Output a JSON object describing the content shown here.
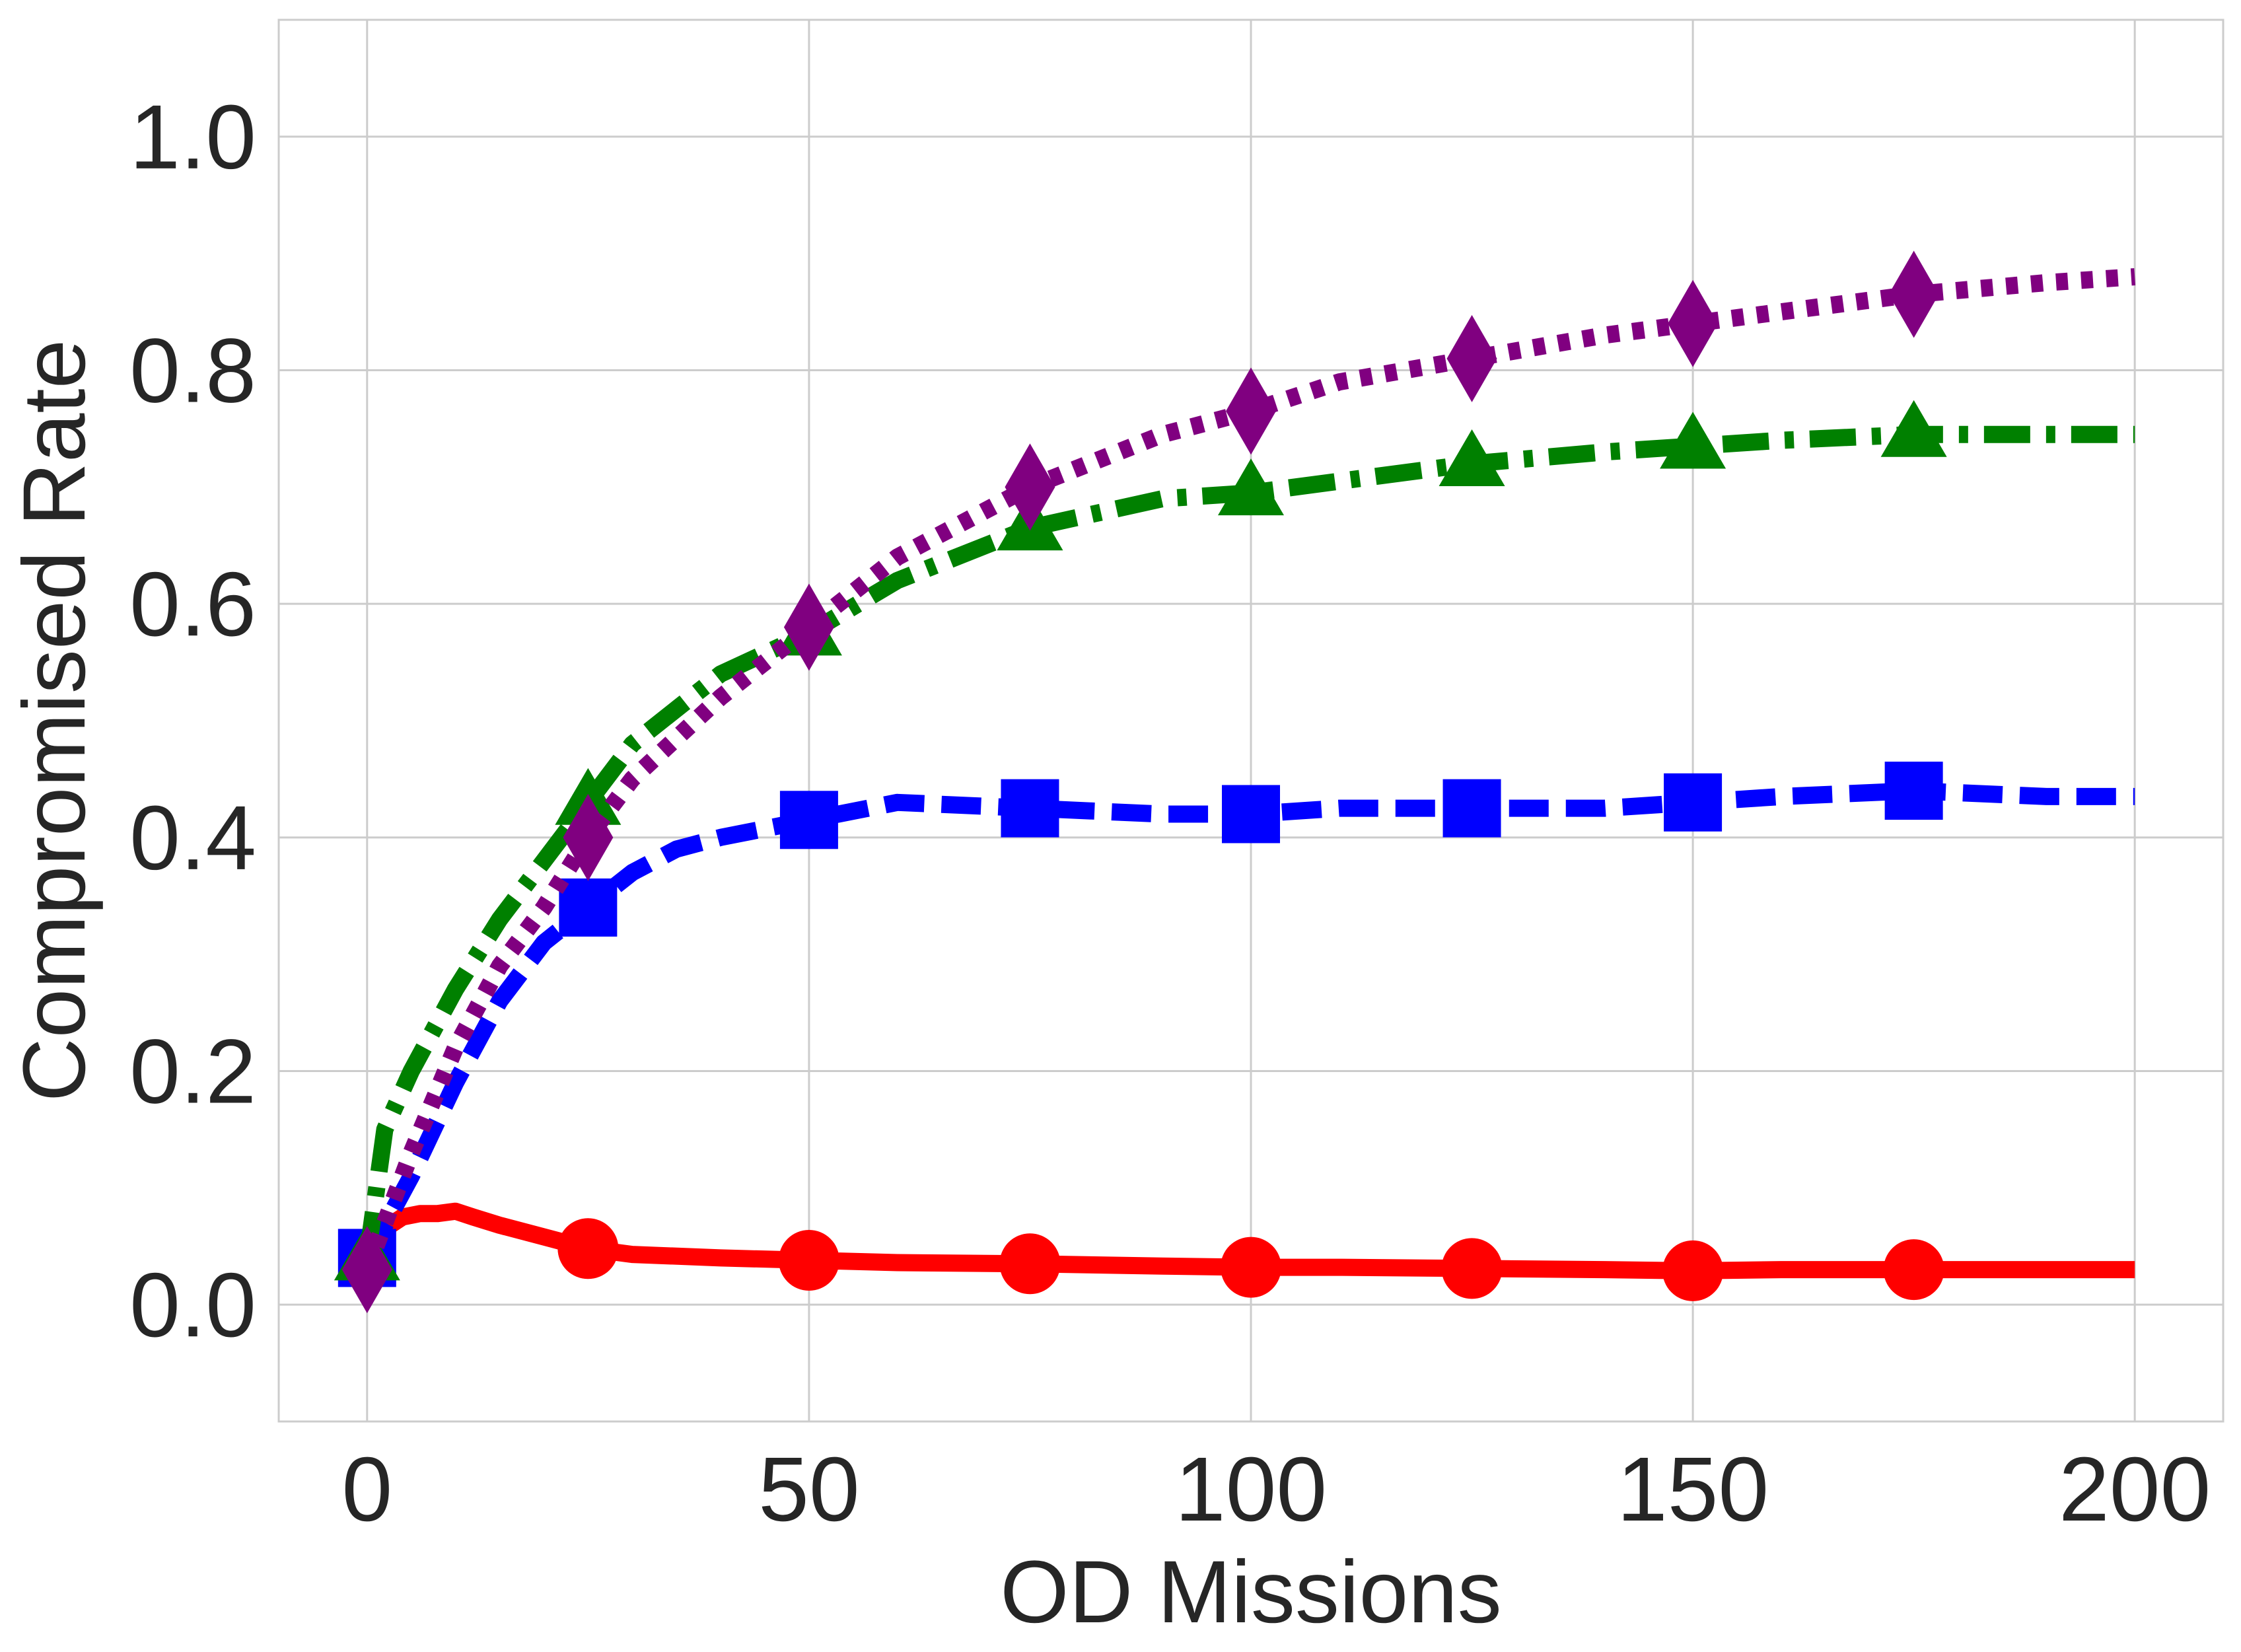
{
  "chart_data": {
    "type": "line",
    "title": "",
    "xlabel": "OD Missions",
    "ylabel": "Compromised Rate",
    "xlim": [
      -10,
      210
    ],
    "ylim": [
      -0.1,
      1.1
    ],
    "xticks": [
      0,
      50,
      100,
      150,
      200
    ],
    "yticks": [
      0.0,
      0.2,
      0.4,
      0.6,
      0.8,
      1.0
    ],
    "xtick_labels": [
      "0",
      "50",
      "100",
      "150",
      "200"
    ],
    "ytick_labels": [
      "0.0",
      "0.2",
      "0.4",
      "0.6",
      "0.8",
      "1.0"
    ],
    "grid": true,
    "legend": false,
    "series": [
      {
        "name": "red-circles",
        "color": "#ff0000",
        "line_style": "solid",
        "marker": "circle",
        "x": [
          0,
          2,
          4,
          6,
          8,
          10,
          12,
          15,
          20,
          25,
          30,
          40,
          50,
          60,
          75,
          90,
          100,
          110,
          125,
          140,
          150,
          160,
          175,
          190,
          200
        ],
        "y": [
          0.04,
          0.065,
          0.075,
          0.078,
          0.078,
          0.08,
          0.075,
          0.068,
          0.058,
          0.048,
          0.043,
          0.04,
          0.038,
          0.036,
          0.035,
          0.033,
          0.032,
          0.032,
          0.031,
          0.03,
          0.029,
          0.03,
          0.03,
          0.03,
          0.03
        ],
        "marker_x": [
          25,
          50,
          75,
          100,
          125,
          150,
          175
        ],
        "marker_y": [
          0.048,
          0.038,
          0.035,
          0.032,
          0.031,
          0.029,
          0.03
        ]
      },
      {
        "name": "blue-squares",
        "color": "#0000ff",
        "line_style": "dashed",
        "marker": "square",
        "x": [
          0,
          5,
          10,
          15,
          20,
          25,
          30,
          35,
          40,
          50,
          60,
          75,
          90,
          100,
          110,
          125,
          140,
          150,
          160,
          175,
          190,
          200
        ],
        "y": [
          0.04,
          0.11,
          0.19,
          0.26,
          0.31,
          0.34,
          0.37,
          0.39,
          0.4,
          0.415,
          0.43,
          0.425,
          0.42,
          0.42,
          0.425,
          0.425,
          0.425,
          0.43,
          0.435,
          0.44,
          0.435,
          0.435
        ],
        "marker_x": [
          0,
          25,
          50,
          75,
          100,
          125,
          150,
          175
        ],
        "marker_y": [
          0.04,
          0.34,
          0.415,
          0.425,
          0.42,
          0.425,
          0.43,
          0.44
        ]
      },
      {
        "name": "green-triangles",
        "color": "#008000",
        "line_style": "dashdot",
        "marker": "triangle",
        "x": [
          0,
          2,
          5,
          10,
          15,
          20,
          25,
          30,
          40,
          50,
          60,
          75,
          90,
          100,
          110,
          125,
          140,
          150,
          160,
          175,
          190,
          200
        ],
        "y": [
          0.04,
          0.15,
          0.2,
          0.27,
          0.33,
          0.38,
          0.43,
          0.48,
          0.54,
          0.575,
          0.62,
          0.665,
          0.69,
          0.695,
          0.705,
          0.72,
          0.73,
          0.735,
          0.74,
          0.745,
          0.745,
          0.745
        ],
        "marker_x": [
          0,
          25,
          50,
          75,
          100,
          125,
          150,
          175
        ],
        "marker_y": [
          0.04,
          0.43,
          0.575,
          0.665,
          0.695,
          0.72,
          0.735,
          0.745
        ]
      },
      {
        "name": "purple-diamonds",
        "color": "#800080",
        "line_style": "dotted",
        "marker": "diamond",
        "x": [
          0,
          5,
          10,
          15,
          20,
          25,
          30,
          40,
          50,
          60,
          75,
          90,
          100,
          110,
          125,
          140,
          150,
          160,
          175,
          190,
          200
        ],
        "y": [
          0.03,
          0.13,
          0.22,
          0.29,
          0.34,
          0.4,
          0.45,
          0.52,
          0.58,
          0.64,
          0.7,
          0.745,
          0.765,
          0.79,
          0.81,
          0.83,
          0.84,
          0.85,
          0.865,
          0.875,
          0.88
        ],
        "marker_x": [
          0,
          25,
          50,
          75,
          100,
          125,
          150,
          175
        ],
        "marker_y": [
          0.03,
          0.4,
          0.58,
          0.7,
          0.765,
          0.81,
          0.84,
          0.865
        ]
      }
    ]
  }
}
